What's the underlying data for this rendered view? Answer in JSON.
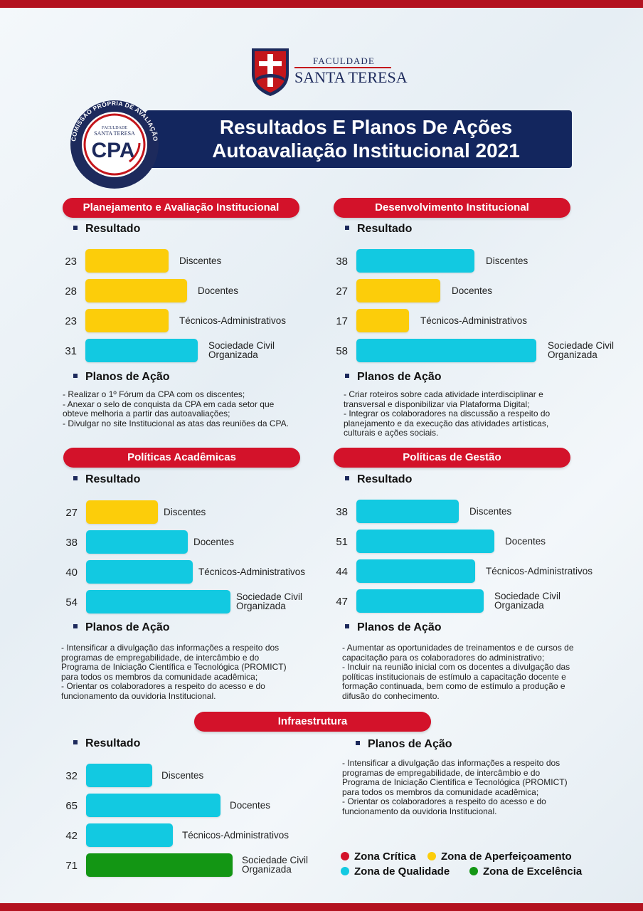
{
  "colors": {
    "critica": "#d3122a",
    "aperfeicoamento": "#fccd0a",
    "qualidade": "#12c9e1",
    "excelencia": "#139614",
    "navy": "#13265e"
  },
  "logo": {
    "small": "FACULDADE",
    "big": "SANTA TERESA"
  },
  "badge": {
    "arc": "COMISSÃO PRÓPRIA DE AVALIAÇÃO",
    "small": "FACULDADE",
    "name": "SANTA TERESA",
    "cpa": "CPA"
  },
  "header": {
    "line1": "Resultados E Planos De Ações",
    "line2": "Autoavaliação Institucional 2021"
  },
  "labels": {
    "resultado": "Resultado",
    "planos": "Planos de Ação"
  },
  "sections": [
    {
      "title": "Planejamento e Avaliação Institucional",
      "rows": [
        {
          "value": "23",
          "label": "Discentes",
          "zone": "aperfeicoamento"
        },
        {
          "value": "28",
          "label": "Docentes",
          "zone": "aperfeicoamento"
        },
        {
          "value": "23",
          "label": "Técnicos-Administrativos",
          "zone": "aperfeicoamento"
        },
        {
          "value": "31",
          "label1": "Sociedade Civil",
          "label2": "Organizada",
          "zone": "qualidade"
        }
      ],
      "plan": [
        "- Realizar o 1º Fórum da CPA com os discentes;",
        "- Anexar o selo de conquista da CPA em cada setor que",
        "obteve melhoria a partir das autoavaliações;",
        "- Divulgar no site Institucional as atas das reuniões da CPA."
      ]
    },
    {
      "title": "Desenvolvimento Institucional",
      "rows": [
        {
          "value": "38",
          "label": "Discentes",
          "zone": "qualidade"
        },
        {
          "value": "27",
          "label": "Docentes",
          "zone": "aperfeicoamento"
        },
        {
          "value": "17",
          "label": "Técnicos-Administrativos",
          "zone": "aperfeicoamento"
        },
        {
          "value": "58",
          "label1": "Sociedade Civil",
          "label2": "Organizada",
          "zone": "qualidade"
        }
      ],
      "plan": [
        "- Criar roteiros sobre cada atividade interdisciplinar e",
        "transversal e disponibilizar via Plataforma Digital;",
        "- Integrar os colaboradores na discussão a respeito do",
        "planejamento e da execução das atividades artísticas,",
        "culturais e ações sociais."
      ]
    },
    {
      "title": "Políticas Acadêmicas",
      "rows": [
        {
          "value": "27",
          "label": "Discentes",
          "zone": "aperfeicoamento"
        },
        {
          "value": "38",
          "label": "Docentes",
          "zone": "qualidade"
        },
        {
          "value": "40",
          "label": "Técnicos-Administrativos",
          "zone": "qualidade"
        },
        {
          "value": "54",
          "label1": "Sociedade Civil",
          "label2": "Organizada",
          "zone": "qualidade"
        }
      ],
      "plan": [
        "- Intensificar a divulgação das informações a respeito dos",
        "programas de empregabilidade, de intercâmbio e do",
        "Programa de Iniciação Científica e Tecnológica (PROMICT)",
        "para todos os membros da comunidade acadêmica;",
        "- Orientar os colaboradores a respeito do acesso e do",
        "funcionamento da ouvidoria Institucional."
      ]
    },
    {
      "title": "Políticas de Gestão",
      "rows": [
        {
          "value": "38",
          "label": "Discentes",
          "zone": "qualidade"
        },
        {
          "value": "51",
          "label": "Docentes",
          "zone": "qualidade"
        },
        {
          "value": "44",
          "label": "Técnicos-Administrativos",
          "zone": "qualidade"
        },
        {
          "value": "47",
          "label1": "Sociedade Civil",
          "label2": "Organizada",
          "zone": "qualidade"
        }
      ],
      "plan": [
        "- Aumentar as oportunidades de treinamentos e de cursos de",
        "capacitação para os colaboradores do administrativo;",
        "- Incluir na reunião inicial com os docentes a divulgação das",
        "políticas institucionais de estímulo a capacitação docente e",
        "formação continuada, bem como de estímulo a produção e",
        "difusão do conhecimento."
      ]
    },
    {
      "title": "Infraestrutura",
      "rows": [
        {
          "value": "32",
          "label": "Discentes",
          "zone": "qualidade"
        },
        {
          "value": "65",
          "label": "Docentes",
          "zone": "qualidade"
        },
        {
          "value": "42",
          "label": "Técnicos-Administrativos",
          "zone": "qualidade"
        },
        {
          "value": "71",
          "label1": "Sociedade Civil",
          "label2": "Organizada",
          "zone": "excelencia"
        }
      ],
      "plan": [
        "- Intensificar a divulgação das informações a respeito dos",
        "programas de empregabilidade, de intercâmbio e do",
        "Programa de Iniciação Científica e Tecnológica (PROMICT)",
        "para todos os membros da comunidade acadêmica;",
        "- Orientar os colaboradores a respeito do acesso e do",
        "funcionamento da ouvidoria Institucional."
      ]
    }
  ],
  "legend": [
    {
      "label": "Zona Crítica",
      "zone": "critica"
    },
    {
      "label": "Zona de Aperfeiçoamento",
      "zone": "aperfeicoamento"
    },
    {
      "label": "Zona de Qualidade",
      "zone": "qualidade"
    },
    {
      "label": "Zona de Excelência",
      "zone": "excelencia"
    }
  ]
}
